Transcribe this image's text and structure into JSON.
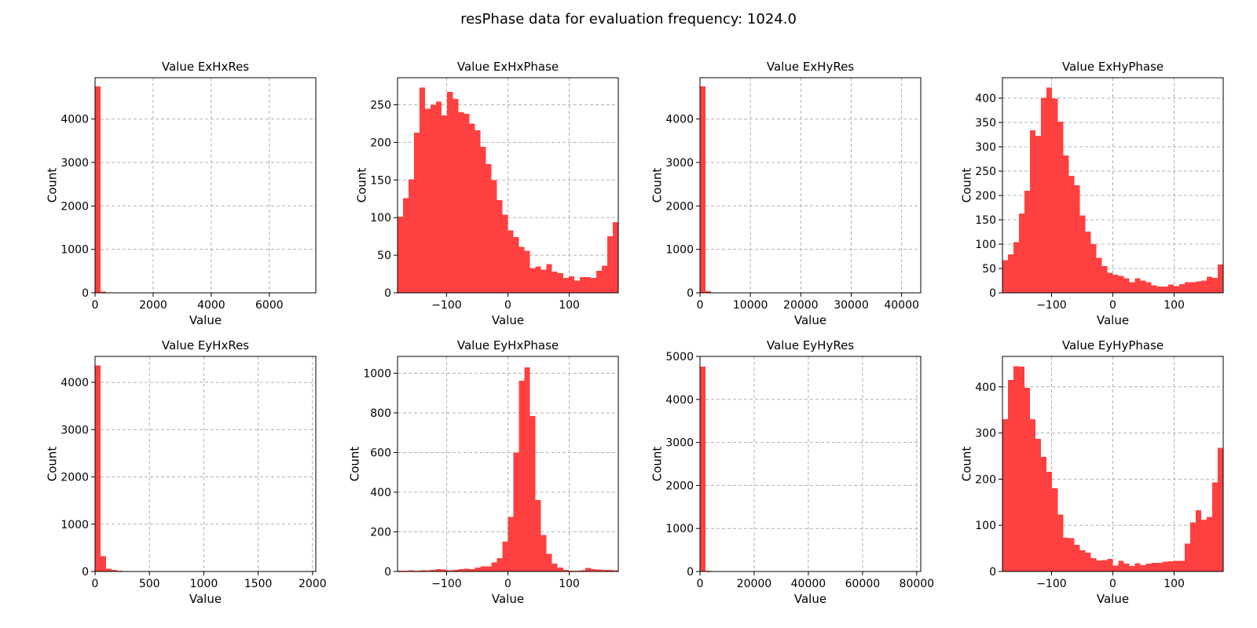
{
  "figure": {
    "title": "resPhase data for evaluation frequency: 1024.0"
  },
  "style": {
    "bar_color": "#ff4040",
    "grid_color": "#b0b0b0",
    "frame_color": "#000000"
  },
  "chart_data": [
    {
      "type": "bar",
      "title": "Value ExHxRes",
      "xlabel": "Value",
      "ylabel": "Count",
      "xlim": [
        0,
        7600
      ],
      "ylim": [
        0,
        4950
      ],
      "xticks": [
        0,
        2000,
        4000,
        6000
      ],
      "yticks": [
        0,
        1000,
        2000,
        3000,
        4000
      ],
      "xtick_labels": [
        "0",
        "2000",
        "4000",
        "6000"
      ],
      "ytick_labels": [
        "0",
        "1000",
        "2000",
        "3000",
        "4000"
      ],
      "grid": true,
      "bin_start": 0,
      "bin_width": 190,
      "values": [
        4750,
        30,
        8,
        5,
        3,
        2,
        2,
        1,
        1,
        1,
        1,
        1,
        1,
        0,
        1,
        0,
        0,
        1,
        0,
        0,
        0,
        0,
        0,
        0,
        0,
        0,
        0,
        0,
        0,
        0,
        0,
        0,
        0,
        0,
        0,
        0,
        0,
        0,
        0,
        1
      ]
    },
    {
      "type": "bar",
      "title": "Value ExHxPhase",
      "xlabel": "Value",
      "ylabel": "Count",
      "xlim": [
        -180,
        180
      ],
      "ylim": [
        0,
        286
      ],
      "xticks": [
        -100,
        0,
        100
      ],
      "yticks": [
        0,
        50,
        100,
        150,
        200,
        250
      ],
      "xtick_labels": [
        "−100",
        "0",
        "100"
      ],
      "ytick_labels": [
        "0",
        "50",
        "100",
        "150",
        "200",
        "250"
      ],
      "grid": true,
      "bin_start": -180,
      "bin_width": 9,
      "values": [
        101,
        126,
        151,
        213,
        273,
        245,
        250,
        254,
        236,
        267,
        258,
        240,
        238,
        225,
        216,
        194,
        171,
        150,
        123,
        104,
        83,
        74,
        61,
        56,
        33,
        35,
        31,
        38,
        28,
        26,
        20,
        22,
        16,
        21,
        21,
        20,
        29,
        36,
        75,
        94
      ]
    },
    {
      "type": "bar",
      "title": "Value ExHyRes",
      "xlabel": "Value",
      "ylabel": "Count",
      "xlim": [
        0,
        43800
      ],
      "ylim": [
        0,
        4950
      ],
      "xticks": [
        0,
        10000,
        20000,
        30000,
        40000
      ],
      "yticks": [
        0,
        1000,
        2000,
        3000,
        4000
      ],
      "xtick_labels": [
        "0",
        "10000",
        "20000",
        "30000",
        "40000"
      ],
      "ytick_labels": [
        "0",
        "1000",
        "2000",
        "3000",
        "4000"
      ],
      "grid": true,
      "bin_start": 0,
      "bin_width": 1095,
      "values": [
        4750,
        40,
        6,
        3,
        2,
        2,
        1,
        1,
        1,
        1,
        0,
        1,
        0,
        1,
        0,
        0,
        0,
        0,
        0,
        0,
        0,
        0,
        0,
        0,
        0,
        0,
        0,
        0,
        0,
        0,
        0,
        0,
        0,
        0,
        0,
        0,
        0,
        0,
        0,
        1
      ]
    },
    {
      "type": "bar",
      "title": "Value ExHyPhase",
      "xlabel": "Value",
      "ylabel": "Count",
      "xlim": [
        -180,
        180
      ],
      "ylim": [
        0,
        442
      ],
      "xticks": [
        -100,
        0,
        100
      ],
      "yticks": [
        0,
        50,
        100,
        150,
        200,
        250,
        300,
        350,
        400
      ],
      "xtick_labels": [
        "−100",
        "0",
        "100"
      ],
      "ytick_labels": [
        "0",
        "50",
        "100",
        "150",
        "200",
        "250",
        "300",
        "350",
        "400"
      ],
      "grid": true,
      "bin_start": -180,
      "bin_width": 9,
      "values": [
        67,
        79,
        104,
        163,
        210,
        334,
        323,
        401,
        422,
        399,
        352,
        282,
        240,
        221,
        159,
        126,
        100,
        72,
        55,
        41,
        37,
        35,
        30,
        22,
        30,
        25,
        22,
        15,
        13,
        13,
        17,
        14,
        18,
        22,
        22,
        23,
        25,
        33,
        31,
        58
      ]
    },
    {
      "type": "bar",
      "title": "Value EyHxRes",
      "xlabel": "Value",
      "ylabel": "Count",
      "xlim": [
        0,
        2030
      ],
      "ylim": [
        0,
        4550
      ],
      "xticks": [
        0,
        500,
        1000,
        1500,
        2000
      ],
      "yticks": [
        0,
        1000,
        2000,
        3000,
        4000
      ],
      "xtick_labels": [
        "0",
        "500",
        "1000",
        "1500",
        "2000"
      ],
      "ytick_labels": [
        "0",
        "1000",
        "2000",
        "3000",
        "4000"
      ],
      "grid": true,
      "bin_start": 0,
      "bin_width": 50,
      "values": [
        4360,
        320,
        55,
        30,
        15,
        12,
        8,
        5,
        3,
        2,
        2,
        1,
        1,
        1,
        1,
        0,
        1,
        0,
        1,
        0,
        0,
        0,
        0,
        0,
        0,
        0,
        0,
        0,
        0,
        0,
        0,
        0,
        0,
        0,
        0,
        0,
        0,
        0,
        0,
        1
      ]
    },
    {
      "type": "bar",
      "title": "Value EyHxPhase",
      "xlabel": "Value",
      "ylabel": "Count",
      "xlim": [
        -180,
        180
      ],
      "ylim": [
        0,
        1085
      ],
      "xticks": [
        -100,
        0,
        100
      ],
      "yticks": [
        0,
        200,
        400,
        600,
        800,
        1000
      ],
      "xtick_labels": [
        "−100",
        "0",
        "100"
      ],
      "ytick_labels": [
        "0",
        "200",
        "400",
        "600",
        "800",
        "1000"
      ],
      "grid": true,
      "bin_start": -180,
      "bin_width": 9,
      "values": [
        3,
        3,
        5,
        4,
        6,
        5,
        8,
        12,
        10,
        6,
        8,
        11,
        14,
        12,
        20,
        26,
        25,
        45,
        68,
        150,
        275,
        600,
        962,
        1030,
        785,
        360,
        185,
        90,
        40,
        20,
        8,
        4,
        3,
        6,
        18,
        12,
        10,
        8,
        7,
        6
      ]
    },
    {
      "type": "bar",
      "title": "Value EyHyRes",
      "xlabel": "Value",
      "ylabel": "Count",
      "xlim": [
        0,
        81500
      ],
      "ylim": [
        0,
        5000
      ],
      "xticks": [
        0,
        20000,
        40000,
        60000,
        80000
      ],
      "yticks": [
        0,
        1000,
        2000,
        3000,
        4000,
        5000
      ],
      "xtick_labels": [
        "0",
        "20000",
        "40000",
        "60000",
        "80000"
      ],
      "ytick_labels": [
        "0",
        "1000",
        "2000",
        "3000",
        "4000",
        "5000"
      ],
      "grid": true,
      "bin_start": 0,
      "bin_width": 2037,
      "values": [
        4760,
        20,
        5,
        3,
        2,
        1,
        1,
        1,
        1,
        0,
        1,
        0,
        0,
        0,
        0,
        0,
        0,
        0,
        0,
        0,
        0,
        0,
        0,
        0,
        0,
        0,
        0,
        0,
        0,
        0,
        0,
        0,
        0,
        0,
        0,
        0,
        0,
        0,
        0,
        1
      ]
    },
    {
      "type": "bar",
      "title": "Value EyHyPhase",
      "xlabel": "Value",
      "ylabel": "Count",
      "xlim": [
        -180,
        180
      ],
      "ylim": [
        0,
        466
      ],
      "xticks": [
        -100,
        0,
        100
      ],
      "yticks": [
        0,
        100,
        200,
        300,
        400
      ],
      "xtick_labels": [
        "−100",
        "0",
        "100"
      ],
      "ytick_labels": [
        "0",
        "100",
        "200",
        "300",
        "400"
      ],
      "grid": true,
      "bin_start": -180,
      "bin_width": 9,
      "values": [
        330,
        415,
        445,
        444,
        398,
        330,
        287,
        248,
        216,
        180,
        123,
        73,
        72,
        58,
        46,
        41,
        29,
        24,
        25,
        27,
        13,
        23,
        17,
        12,
        18,
        14,
        17,
        19,
        19,
        21,
        22,
        23,
        23,
        60,
        106,
        133,
        112,
        118,
        193,
        268
      ]
    }
  ]
}
